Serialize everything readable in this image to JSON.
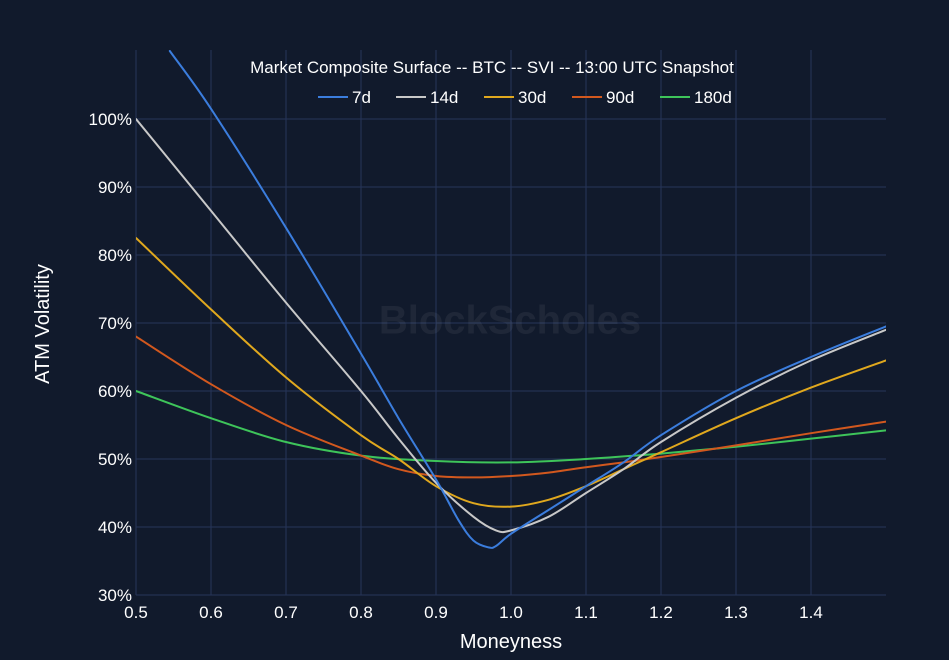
{
  "chart_data": {
    "type": "line",
    "title": "Market Composite Surface -- BTC -- SVI -- 13:00 UTC Snapshot",
    "xlabel": "Moneyness",
    "ylabel": "ATM Volatility",
    "watermark": "BlockScholes",
    "xlim": [
      0.5,
      1.5
    ],
    "ylim": [
      30,
      100
    ],
    "x_ticks": [
      0.5,
      0.6,
      0.7,
      0.8,
      0.9,
      1.0,
      1.1,
      1.2,
      1.3,
      1.4
    ],
    "x_tick_labels": [
      "0.5",
      "0.6",
      "0.7",
      "0.8",
      "0.9",
      "1.0",
      "1.1",
      "1.2",
      "1.3",
      "1.4"
    ],
    "y_ticks": [
      30,
      40,
      50,
      60,
      70,
      80,
      90,
      100
    ],
    "y_tick_labels": [
      "30%",
      "40%",
      "50%",
      "60%",
      "70%",
      "80%",
      "90%",
      "100%"
    ],
    "grid": true,
    "legend_position": "top-center",
    "colors": {
      "background": "#111a2c",
      "grid": "#26355a",
      "text": "#ffffff"
    },
    "series": [
      {
        "name": "7d",
        "color": "#3b7ddd",
        "x": [
          0.545,
          0.6,
          0.7,
          0.8,
          0.85,
          0.9,
          0.93,
          0.95,
          0.97,
          0.98,
          1.0,
          1.05,
          1.1,
          1.15,
          1.2,
          1.3,
          1.4,
          1.5
        ],
        "y": [
          110,
          101.5,
          84,
          65.5,
          56,
          47,
          41,
          38,
          37,
          37.2,
          39,
          42.5,
          46,
          49.5,
          53.5,
          60,
          65,
          69.5
        ]
      },
      {
        "name": "14d",
        "color": "#c8c8c8",
        "x": [
          0.5,
          0.6,
          0.7,
          0.8,
          0.85,
          0.9,
          0.95,
          0.98,
          1.0,
          1.05,
          1.1,
          1.15,
          1.2,
          1.3,
          1.4,
          1.5
        ],
        "y": [
          100,
          86.5,
          73,
          60,
          53,
          46.5,
          41.5,
          39.5,
          39.5,
          41.5,
          45,
          48.5,
          52.5,
          59,
          64.5,
          69
        ]
      },
      {
        "name": "30d",
        "color": "#e0a81e",
        "x": [
          0.5,
          0.6,
          0.7,
          0.8,
          0.85,
          0.9,
          0.95,
          1.0,
          1.05,
          1.1,
          1.15,
          1.2,
          1.3,
          1.4,
          1.5
        ],
        "y": [
          82.5,
          72,
          62,
          53.5,
          50,
          46,
          43.5,
          43,
          44,
          46,
          48.5,
          51,
          56,
          60.5,
          64.5
        ]
      },
      {
        "name": "90d",
        "color": "#d2581e",
        "x": [
          0.5,
          0.6,
          0.7,
          0.8,
          0.85,
          0.9,
          0.95,
          1.0,
          1.05,
          1.1,
          1.15,
          1.2,
          1.3,
          1.4,
          1.5
        ],
        "y": [
          68,
          61,
          55,
          50.5,
          48.5,
          47.5,
          47.3,
          47.5,
          48,
          48.8,
          49.5,
          50.3,
          52,
          53.8,
          55.5
        ]
      },
      {
        "name": "180d",
        "color": "#3ec45a",
        "x": [
          0.5,
          0.6,
          0.7,
          0.8,
          0.9,
          1.0,
          1.1,
          1.2,
          1.3,
          1.4,
          1.5
        ],
        "y": [
          60,
          56,
          52.5,
          50.5,
          49.7,
          49.5,
          50,
          50.8,
          51.8,
          53,
          54.2
        ]
      }
    ]
  }
}
